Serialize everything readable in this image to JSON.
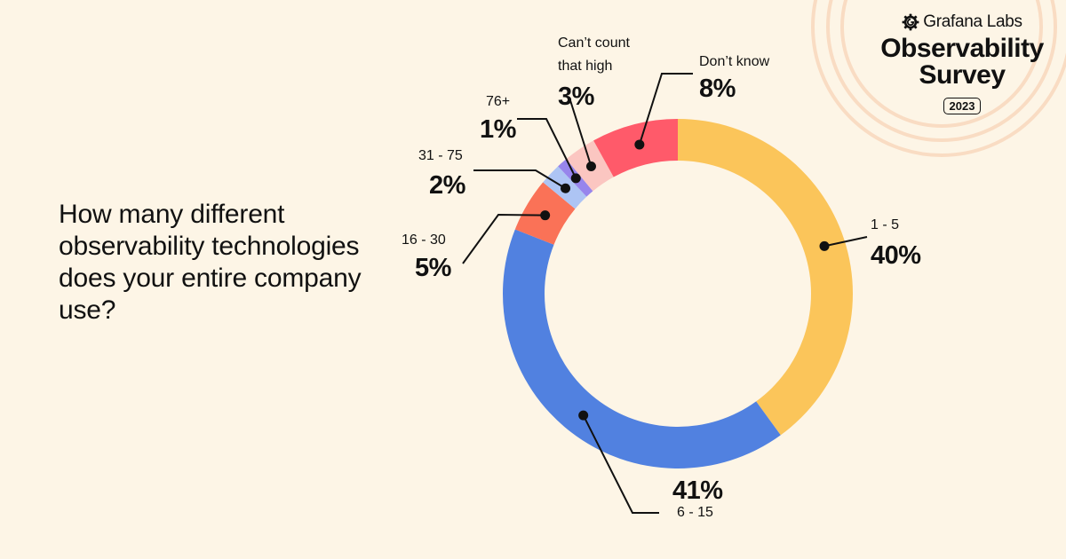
{
  "question": "How many different observability technologies does your entire company use?",
  "brand": {
    "logo_icon": "grafana-logo-icon",
    "name": "Grafana Labs",
    "title_line1": "Observability",
    "title_line2": "Survey",
    "year": "2023"
  },
  "colors": {
    "background": "#fdf5e6",
    "rings": "#f8dcc4",
    "text": "#111111"
  },
  "chart_data": {
    "type": "pie",
    "subtype": "donut",
    "title": "How many different observability technologies does your entire company use?",
    "start_angle": "12 o'clock, clockwise",
    "categories": [
      "1 - 5",
      "6 - 15",
      "16 - 30",
      "31 - 75",
      "76+",
      "Can't count that high",
      "Don't know"
    ],
    "values": [
      40,
      41,
      5,
      2,
      1,
      3,
      8
    ],
    "value_labels": [
      "40%",
      "41%",
      "5%",
      "2%",
      "1%",
      "3%",
      "8%"
    ],
    "colors": [
      "#fbc55a",
      "#5181e0",
      "#fa7257",
      "#adc4f4",
      "#9785ec",
      "#fbc6c1",
      "#ff5a6a"
    ],
    "legend": "none (callout labels)",
    "unit": "%"
  },
  "labels": {
    "s0": {
      "cat": "1 - 5",
      "pct": "40%"
    },
    "s1": {
      "cat": "6 - 15",
      "pct": "41%"
    },
    "s2": {
      "cat": "16 - 30",
      "pct": "5%"
    },
    "s3": {
      "cat": "31 - 75",
      "pct": "2%"
    },
    "s4": {
      "cat": "76+",
      "pct": "1%"
    },
    "s5": {
      "cat_line1": "Can’t count",
      "cat_line2": "that high",
      "pct": "3%"
    },
    "s6": {
      "cat": "Don’t know",
      "pct": "8%"
    }
  }
}
